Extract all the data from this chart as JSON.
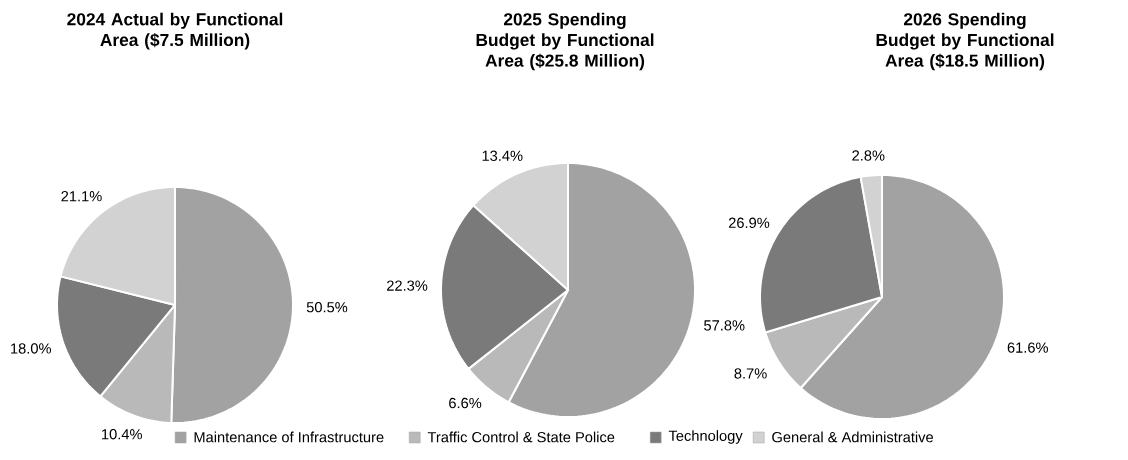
{
  "chart_data": [
    {
      "type": "pie",
      "title": "2024 Actual by Functional Area ($7.5 Million)",
      "categories": [
        "Maintenance of Infrastructure",
        "Traffic Control & State Police",
        "Technology",
        "General & Administrative"
      ],
      "values": [
        50.5,
        10.4,
        18.0,
        21.1
      ],
      "value_labels": [
        "50.5%",
        "10.4%",
        "18.0%",
        "21.1%"
      ],
      "colors": [
        "#a2a2a2",
        "#b9b9b9",
        "#7a7a7a",
        "#d2d2d2"
      ],
      "legend": "bottom"
    },
    {
      "type": "pie",
      "title": "2025 Spending Budget by Functional Area ($25.8 Million)",
      "categories": [
        null,
        null,
        null,
        null
      ],
      "values": [
        57.8,
        6.6,
        22.3,
        13.4
      ],
      "value_labels": [
        "57.8%",
        "6.6%",
        "22.3%",
        "13.4%"
      ],
      "colors": [
        "#a2a2a2",
        "#b9b9b9",
        "#7a7a7a",
        "#d2d2d2"
      ]
    },
    {
      "type": "pie",
      "title": "2026 Spending Budget by Functional Area ($18.5 Million)",
      "categories": [
        null,
        null,
        null,
        null
      ],
      "values": [
        61.6,
        8.7,
        26.9,
        2.8
      ],
      "value_labels": [
        "61.6%",
        "8.7%",
        "26.9%",
        "2.8%"
      ],
      "colors": [
        "#a2a2a2",
        "#b9b9b9",
        "#7a7a7a",
        "#d2d2d2"
      ]
    }
  ]
}
